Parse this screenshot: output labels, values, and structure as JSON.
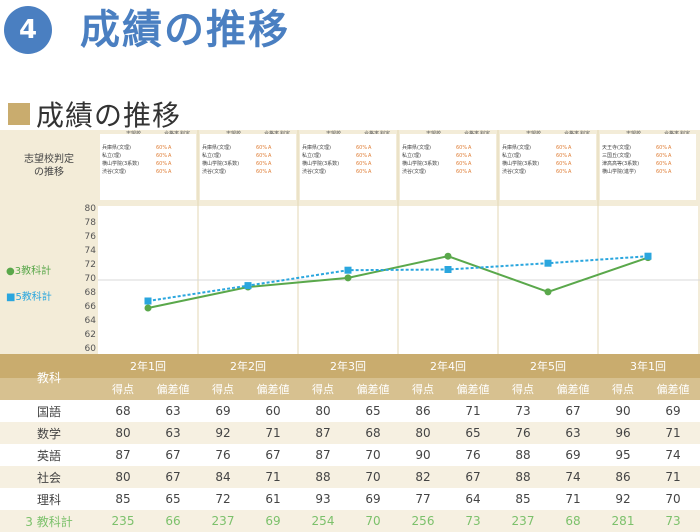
{
  "header": {
    "number": "4",
    "title": "成績の推移"
  },
  "section": {
    "title": "成績の推移"
  },
  "sidebar_label": [
    "志望校判定",
    "の推移"
  ],
  "school_columns": {
    "h1": "志望校",
    "h2": "合格率",
    "h3": "判定"
  },
  "schools": [
    [
      [
        "兵庫県(文理)",
        "60%",
        "A"
      ],
      [
        "私立(理)",
        "60%",
        "A"
      ],
      [
        "横山学院(3系数)",
        "60%",
        "A"
      ],
      [
        "渋谷(文理)",
        "60%",
        "A"
      ]
    ],
    [
      [
        "兵庫県(文理)",
        "60%",
        "A"
      ],
      [
        "私立(理)",
        "60%",
        "A"
      ],
      [
        "横山学院(3系数)",
        "60%",
        "A"
      ],
      [
        "渋谷(文理)",
        "60%",
        "A"
      ]
    ],
    [
      [
        "兵庫県(文理)",
        "60%",
        "A"
      ],
      [
        "私立(理)",
        "60%",
        "A"
      ],
      [
        "横山学院(3系数)",
        "60%",
        "A"
      ],
      [
        "渋谷(文理)",
        "60%",
        "A"
      ]
    ],
    [
      [
        "兵庫県(文理)",
        "60%",
        "A"
      ],
      [
        "私立(理)",
        "60%",
        "A"
      ],
      [
        "横山学院(3系数)",
        "60%",
        "A"
      ],
      [
        "渋谷(文理)",
        "60%",
        "A"
      ]
    ],
    [
      [
        "兵庫県(文理)",
        "60%",
        "A"
      ],
      [
        "私立(理)",
        "60%",
        "A"
      ],
      [
        "横山学院(3系数)",
        "60%",
        "A"
      ],
      [
        "渋谷(文理)",
        "60%",
        "A"
      ]
    ],
    [
      [
        "天王寺(文理)",
        "60%",
        "A"
      ],
      [
        "三国丘(文理)",
        "60%",
        "A"
      ],
      [
        "津高高等(3系数)",
        "60%",
        "A"
      ],
      [
        "横山学院(進学)",
        "60%",
        "A"
      ]
    ]
  ],
  "legend": {
    "s3": "●3教科計",
    "s5": "■5教科計"
  },
  "chart_data": {
    "type": "line",
    "categories": [
      "2年1回",
      "2年2回",
      "2年3回",
      "2年4回",
      "2年5回",
      "3年1回"
    ],
    "ylim": [
      60,
      80
    ],
    "yticks": [
      80,
      78,
      76,
      74,
      72,
      70,
      68,
      66,
      64,
      62,
      60
    ],
    "series": [
      {
        "name": "3教科計",
        "values": [
          66,
          69,
          70.3,
          73.4,
          68.3,
          73.2
        ],
        "color": "#5aa84b"
      },
      {
        "name": "5教科計",
        "values": [
          67,
          69.2,
          71.4,
          71.5,
          72.4,
          73.4
        ],
        "color": "#2aa6de"
      }
    ]
  },
  "table": {
    "subject_header": "教科",
    "terms": [
      "2年1回",
      "2年2回",
      "2年3回",
      "2年4回",
      "2年5回",
      "3年1回"
    ],
    "sub_headers": [
      "得点",
      "偏差値"
    ],
    "rows": [
      {
        "subject": "国語",
        "values": [
          "68",
          "63",
          "69",
          "60",
          "80",
          "65",
          "86",
          "71",
          "73",
          "67",
          "90",
          "69"
        ]
      },
      {
        "subject": "数学",
        "values": [
          "80",
          "63",
          "92",
          "71",
          "87",
          "68",
          "80",
          "65",
          "76",
          "63",
          "96",
          "71"
        ]
      },
      {
        "subject": "英語",
        "values": [
          "87",
          "67",
          "76",
          "67",
          "87",
          "70",
          "90",
          "76",
          "88",
          "69",
          "95",
          "74"
        ]
      },
      {
        "subject": "社会",
        "values": [
          "80",
          "67",
          "84",
          "71",
          "88",
          "70",
          "82",
          "67",
          "88",
          "74",
          "86",
          "71"
        ]
      },
      {
        "subject": "理科",
        "values": [
          "85",
          "65",
          "72",
          "61",
          "93",
          "69",
          "77",
          "64",
          "85",
          "71",
          "92",
          "70"
        ]
      },
      {
        "subject": "3 教科計",
        "values": [
          "235",
          "66",
          "237",
          "69",
          "254",
          "70",
          "256",
          "73",
          "237",
          "68",
          "281",
          "73"
        ]
      }
    ]
  },
  "colors": {
    "accent": "#4a7fc1",
    "gold": "#c9ac6e",
    "green": "#5aa84b",
    "blue": "#2aa6de"
  }
}
